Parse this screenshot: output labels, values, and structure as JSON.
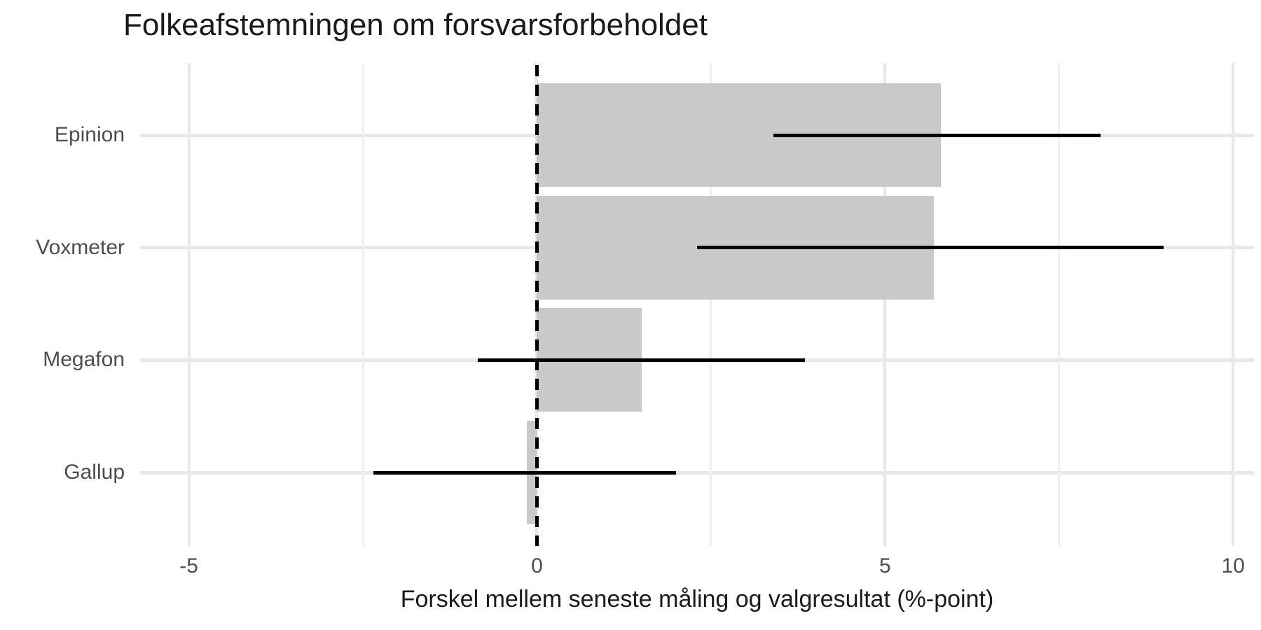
{
  "chart_data": {
    "type": "bar",
    "orientation": "horizontal",
    "title": "Folkeafstemningen om forsvarsforbeholdet",
    "xlabel": "Forskel mellem seneste måling og valgresultat (%-point)",
    "ylabel": "",
    "categories": [
      "Epinion",
      "Voxmeter",
      "Megafon",
      "Gallup"
    ],
    "values": [
      5.8,
      5.7,
      1.5,
      -0.15
    ],
    "error_low": [
      3.4,
      2.3,
      -0.85,
      -2.35
    ],
    "error_high": [
      8.1,
      9.0,
      3.85,
      2.0
    ],
    "x_ticks": [
      -5,
      0,
      5,
      10
    ],
    "x_tick_labels": [
      "-5",
      "0",
      "5",
      "10"
    ],
    "x_minor_gridlines": [
      -2.5,
      2.5,
      7.5
    ],
    "xlim": [
      -5.7,
      10.3
    ],
    "reference_line_x": 0,
    "grid": "light grey major and minor vertical, major horizontal per category",
    "legend_position": "none",
    "colors": {
      "bar_fill": "#c9c9c9",
      "error_bar": "#000000",
      "reference_line": "#000000",
      "grid_major": "#e8e8e8",
      "grid_minor": "#efefef",
      "tick_text": "#4d4d4d",
      "title_text": "#1a1a1a",
      "background": "#ffffff"
    }
  }
}
